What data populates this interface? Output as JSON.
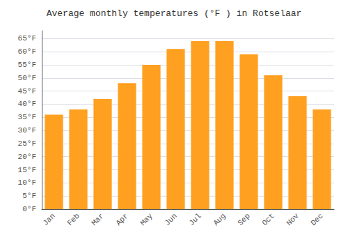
{
  "chart_data": {
    "type": "bar",
    "title": "Average monthly temperatures (°F ) in Rotselaar",
    "categories": [
      "Jan",
      "Feb",
      "Mar",
      "Apr",
      "May",
      "Jun",
      "Jul",
      "Aug",
      "Sep",
      "Oct",
      "Nov",
      "Dec"
    ],
    "values": [
      36,
      38,
      42,
      48,
      55,
      61,
      64,
      64,
      59,
      51,
      43,
      38
    ],
    "color": "#FFA020",
    "ylim": [
      0,
      68
    ],
    "yticks": [
      {
        "value": 0,
        "label": "0°F"
      },
      {
        "value": 5,
        "label": "5°F"
      },
      {
        "value": 10,
        "label": "10°F"
      },
      {
        "value": 15,
        "label": "15°F"
      },
      {
        "value": 20,
        "label": "20°F"
      },
      {
        "value": 25,
        "label": "25°F"
      },
      {
        "value": 30,
        "label": "30°F"
      },
      {
        "value": 35,
        "label": "35°F"
      },
      {
        "value": 40,
        "label": "40°F"
      },
      {
        "value": 45,
        "label": "45°F"
      },
      {
        "value": 50,
        "label": "50°F"
      },
      {
        "value": 55,
        "label": "55°F"
      },
      {
        "value": 60,
        "label": "60°F"
      },
      {
        "value": 65,
        "label": "65°F"
      }
    ],
    "grid": true
  }
}
